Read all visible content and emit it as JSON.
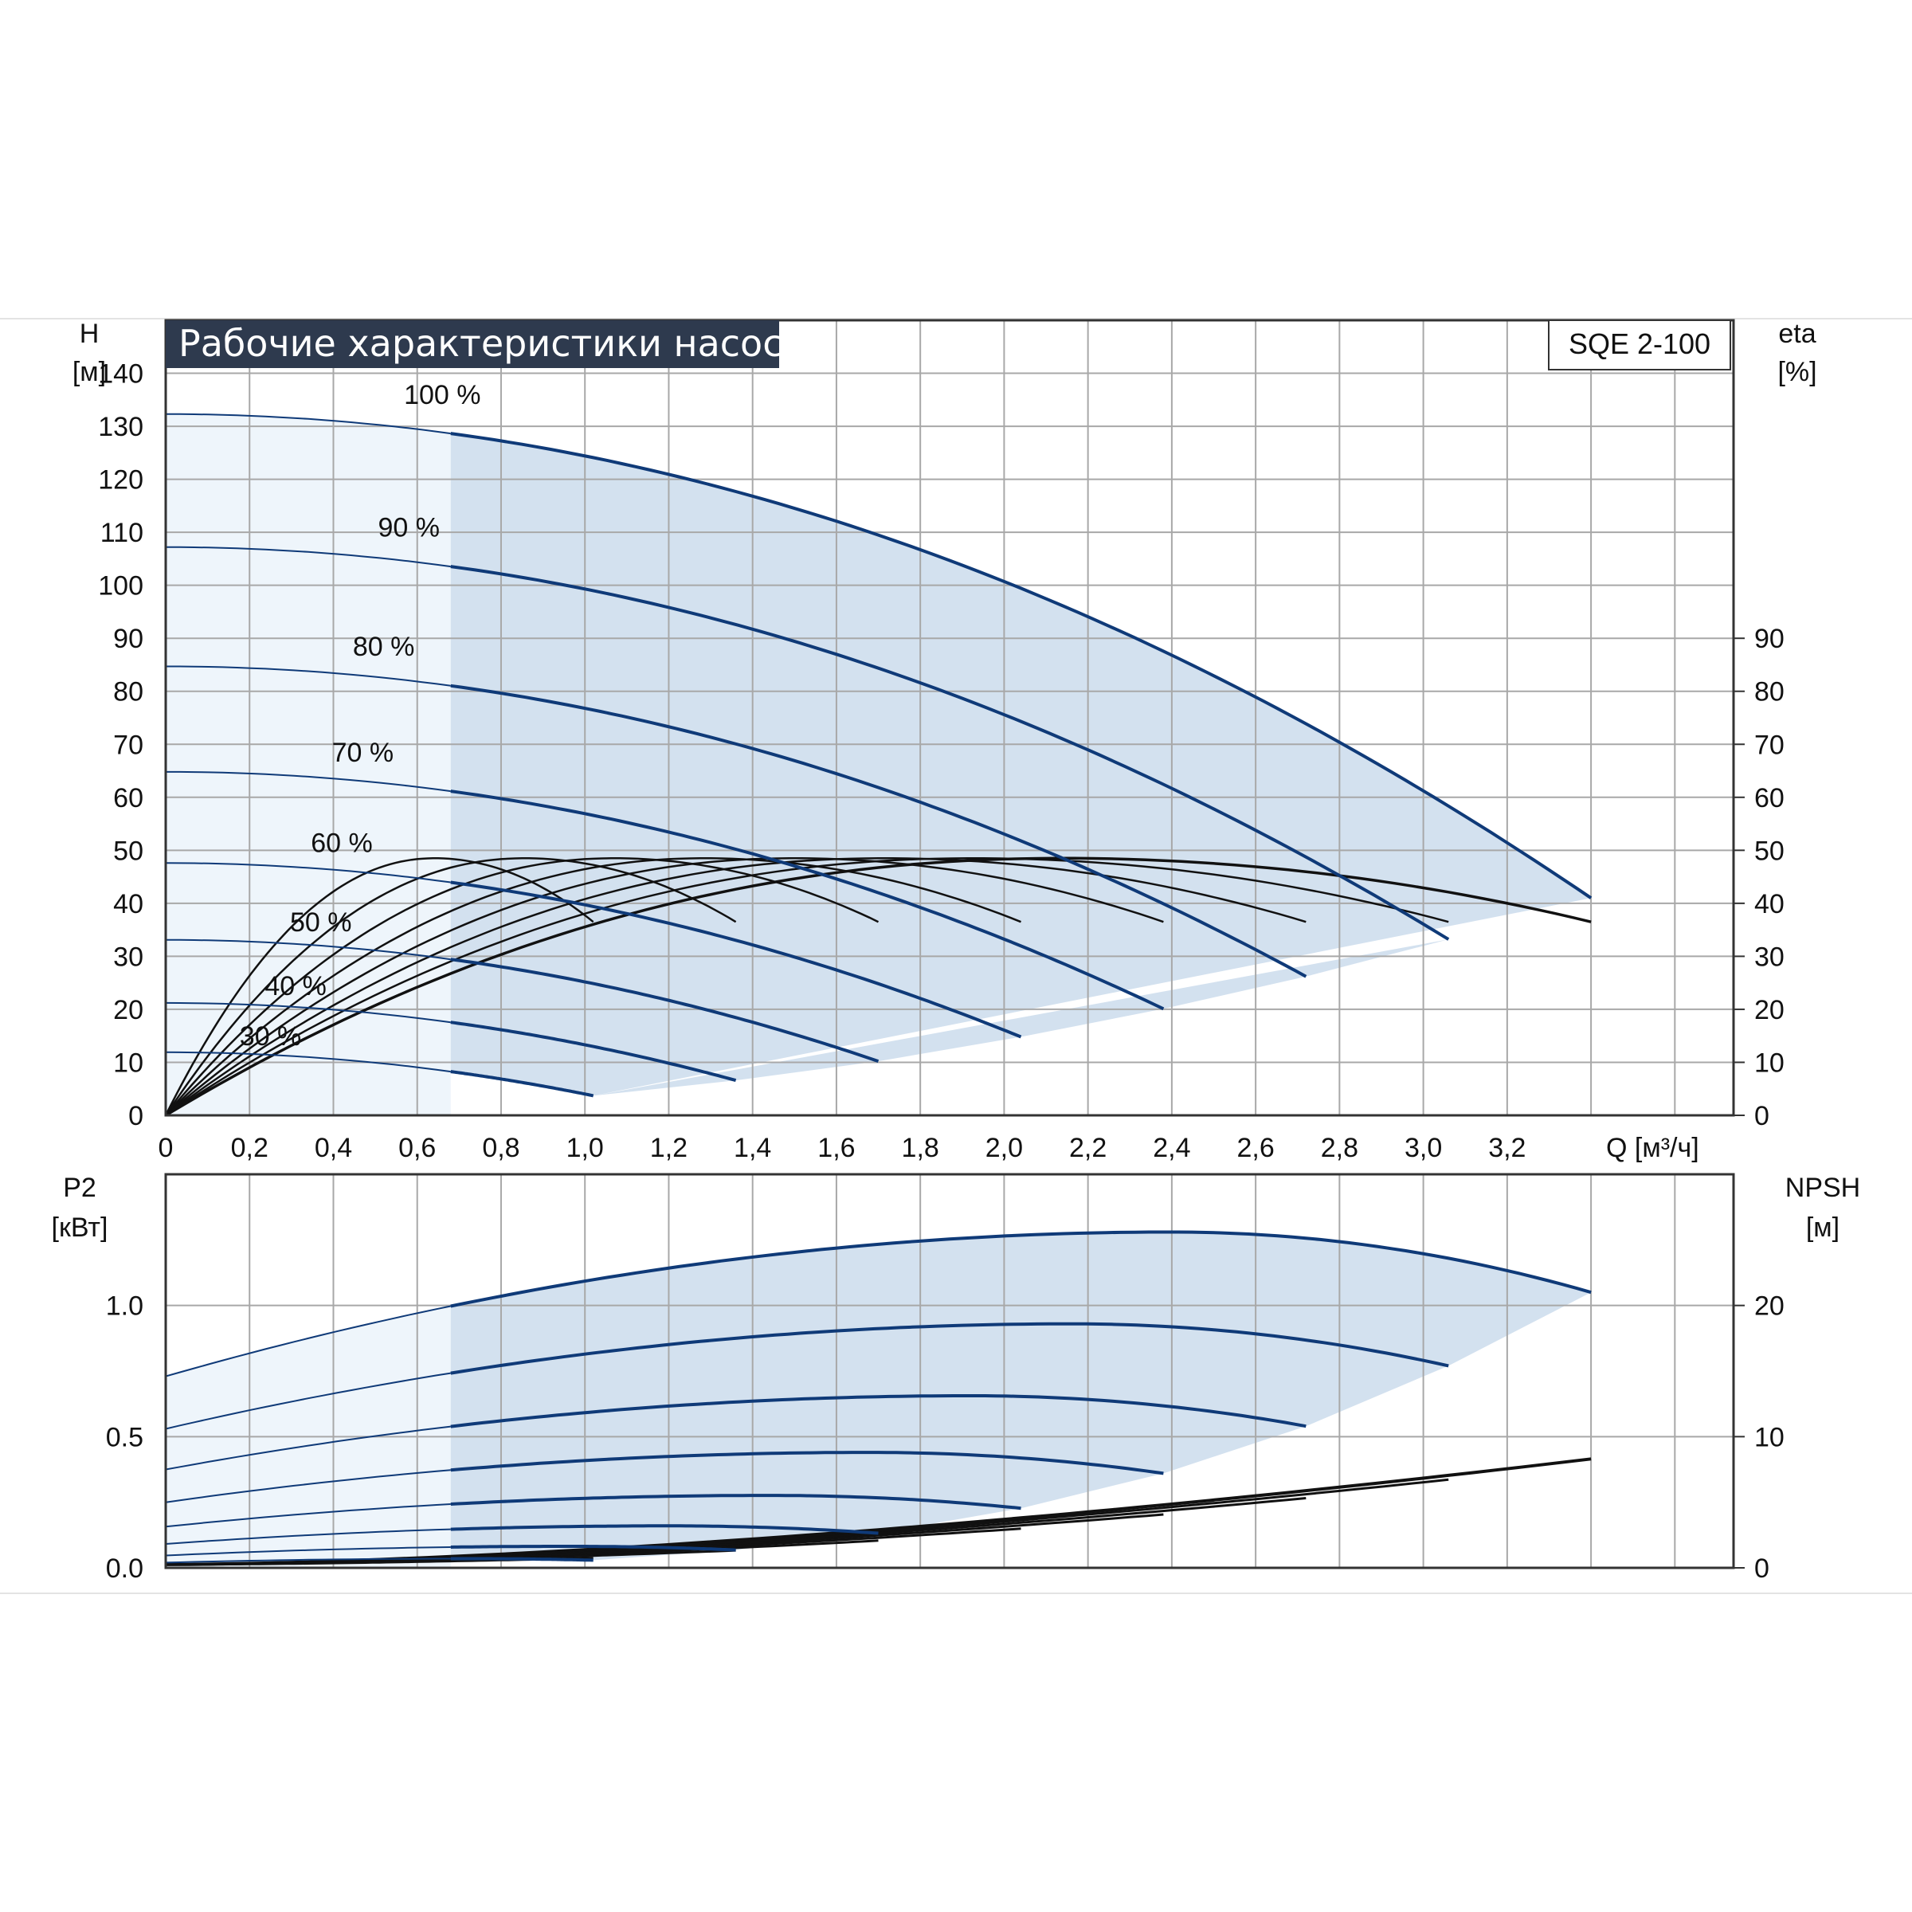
{
  "colors": {
    "grid": "#a8a8a8",
    "frame": "#333333",
    "curve_blue": "#0f3a78",
    "curve_black": "#111111",
    "fill_region": "#d3e1ef",
    "fill_light": "#eef5fb",
    "title_bg": "#2e3a4e"
  },
  "chart_data": [
    {
      "id": "head-chart",
      "type": "line",
      "title": "Рабочие характеристики насоса",
      "model": "SQE 2-100",
      "x_label": "Q [м³/ч]",
      "y_label_left": [
        "H",
        "[м]"
      ],
      "y_label_right": [
        "eta",
        "[%]"
      ],
      "xlim": [
        0,
        3.74
      ],
      "ylim": [
        0,
        150
      ],
      "grid": true,
      "x_ticks": [
        "0",
        "0,2",
        "0,4",
        "0,6",
        "0,8",
        "1,0",
        "1,2",
        "1,4",
        "1,6",
        "1,8",
        "2,0",
        "2,2",
        "2,4",
        "2,6",
        "2,8",
        "3,0",
        "3,2"
      ],
      "y_ticks_left": [
        "0",
        "10",
        "20",
        "30",
        "40",
        "50",
        "60",
        "70",
        "80",
        "90",
        "100",
        "110",
        "120",
        "130",
        "140"
      ],
      "y_ticks_right": [
        "0",
        "10",
        "20",
        "30",
        "40",
        "50",
        "60",
        "70",
        "80",
        "90"
      ],
      "operating_region_min_q": 0.68,
      "head_curves": [
        {
          "label": "100 %",
          "h0": 132.3,
          "qmax": 3.4,
          "hend": 41,
          "label_at": [
            0.66,
            136
          ]
        },
        {
          "label": "90 %",
          "h0": 107.2,
          "qmax": 3.06,
          "hend": 33.2,
          "label_at": [
            0.58,
            111
          ]
        },
        {
          "label": "80 %",
          "h0": 84.7,
          "qmax": 2.72,
          "hend": 26.2,
          "label_at": [
            0.52,
            88.5
          ]
        },
        {
          "label": "70 %",
          "h0": 64.8,
          "qmax": 2.38,
          "hend": 20.1,
          "label_at": [
            0.47,
            68.5
          ]
        },
        {
          "label": "60 %",
          "h0": 47.6,
          "qmax": 2.04,
          "hend": 14.8,
          "label_at": [
            0.42,
            51.5
          ]
        },
        {
          "label": "50 %",
          "h0": 33.1,
          "qmax": 1.7,
          "hend": 10.2,
          "label_at": [
            0.37,
            36.5
          ]
        },
        {
          "label": "40 %",
          "h0": 21.2,
          "qmax": 1.36,
          "hend": 6.6,
          "label_at": [
            0.31,
            24.5
          ]
        },
        {
          "label": "30 %",
          "h0": 11.9,
          "qmax": 1.02,
          "hend": 3.7,
          "label_at": [
            0.25,
            15
          ]
        }
      ],
      "eta_peak": 48.5,
      "eta_end": 36.5
    },
    {
      "id": "power-chart",
      "type": "line",
      "y_label_left": [
        "P2",
        "[кВт]"
      ],
      "y_label_right": [
        "NPSH",
        "[м]"
      ],
      "xlim": [
        0,
        3.74
      ],
      "ylim": [
        0,
        1.5
      ],
      "grid": true,
      "y_ticks_left": [
        "0.0",
        "0.5",
        "1.0"
      ],
      "y_ticks_right": [
        "0",
        "10",
        "20"
      ],
      "power_curves": [
        {
          "label": "100 %",
          "p0": 0.73,
          "qpeak": 2.4,
          "ppeak": 1.28,
          "pend": 1.05
        },
        {
          "label": "90 %",
          "p0": 0.53,
          "qpeak": 2.16,
          "ppeak": 0.93,
          "pend": 0.77
        },
        {
          "label": "80 %",
          "p0": 0.375,
          "qpeak": 1.92,
          "ppeak": 0.656,
          "pend": 0.54
        },
        {
          "label": "70 %",
          "p0": 0.25,
          "qpeak": 1.68,
          "ppeak": 0.44,
          "pend": 0.36
        },
        {
          "label": "60 %",
          "p0": 0.157,
          "qpeak": 1.44,
          "ppeak": 0.276,
          "pend": 0.227
        },
        {
          "label": "50 %",
          "p0": 0.091,
          "qpeak": 1.2,
          "ppeak": 0.16,
          "pend": 0.132
        },
        {
          "label": "40 %",
          "p0": 0.047,
          "qpeak": 0.96,
          "ppeak": 0.082,
          "pend": 0.068
        },
        {
          "label": "30 %",
          "p0": 0.02,
          "qpeak": 0.72,
          "ppeak": 0.035,
          "pend": 0.029
        }
      ],
      "npsh_end": 8.3
    }
  ]
}
